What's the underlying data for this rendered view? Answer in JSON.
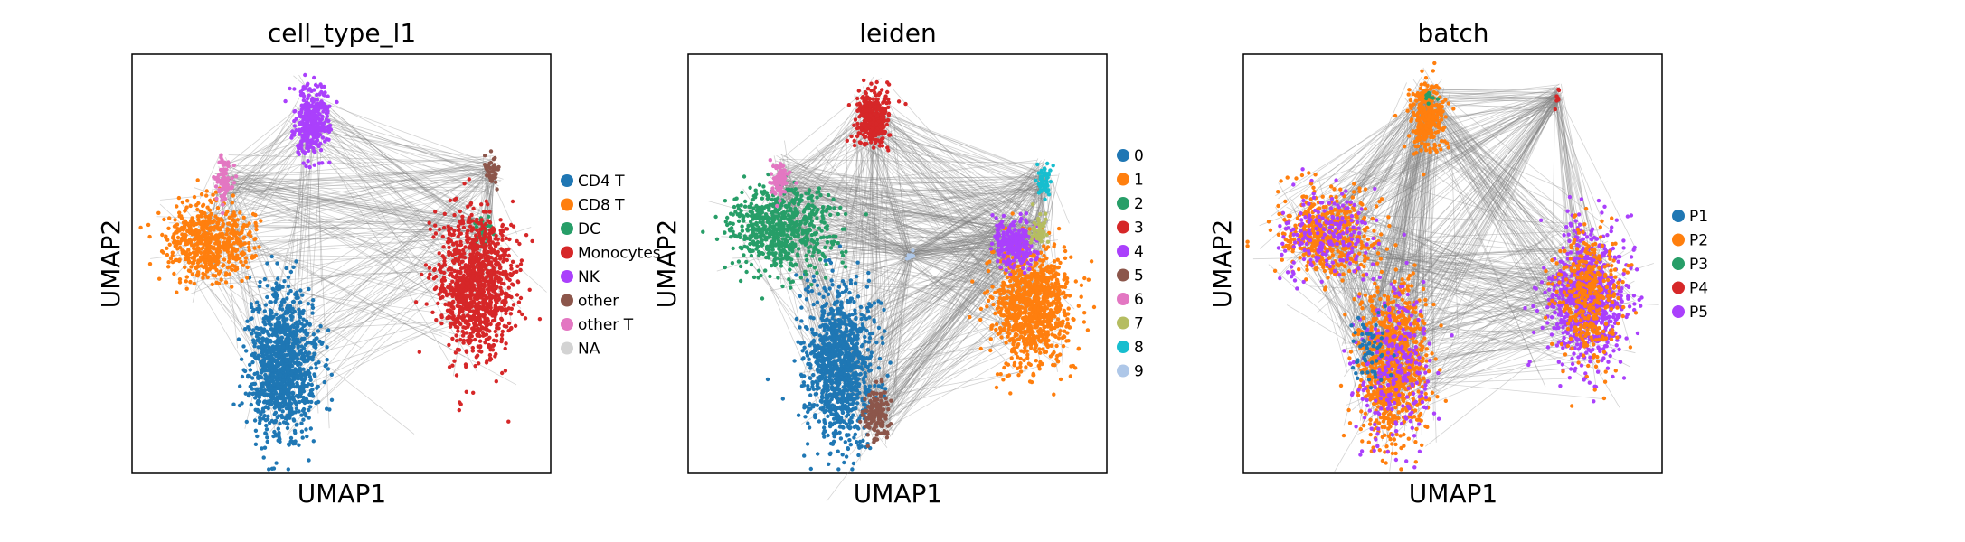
{
  "figure": {
    "background": "#ffffff",
    "edge_color": "#808080",
    "na_color": "#d3d3d3"
  },
  "chart_data": [
    {
      "type": "scatter",
      "title": "cell_type_l1",
      "xlabel": "UMAP1",
      "ylabel": "UMAP2",
      "grid": false,
      "legend_position": "right",
      "categories": [
        {
          "name": "CD4 T",
          "color": "#1f77b4"
        },
        {
          "name": "CD8 T",
          "color": "#ff7f0e"
        },
        {
          "name": "DC",
          "color": "#279e68"
        },
        {
          "name": "Monocytes",
          "color": "#d62728"
        },
        {
          "name": "NK",
          "color": "#aa40fc"
        },
        {
          "name": "other",
          "color": "#8c564b"
        },
        {
          "name": "other T",
          "color": "#e377c2"
        },
        {
          "name": "NA",
          "color": "#d3d3d3"
        }
      ],
      "clusters": [
        {
          "category": "CD4 T",
          "x": 0.36,
          "y": 0.26,
          "rx": 0.08,
          "ry": 0.17,
          "n": 1100
        },
        {
          "category": "CD8 T",
          "x": 0.18,
          "y": 0.55,
          "rx": 0.1,
          "ry": 0.09,
          "n": 600
        },
        {
          "category": "DC",
          "x": 0.84,
          "y": 0.58,
          "rx": 0.02,
          "ry": 0.04,
          "n": 40
        },
        {
          "category": "Monocytes",
          "x": 0.82,
          "y": 0.45,
          "rx": 0.09,
          "ry": 0.17,
          "n": 1100
        },
        {
          "category": "NK",
          "x": 0.43,
          "y": 0.84,
          "rx": 0.04,
          "ry": 0.08,
          "n": 350
        },
        {
          "category": "other",
          "x": 0.86,
          "y": 0.72,
          "rx": 0.02,
          "ry": 0.04,
          "n": 40
        },
        {
          "category": "other T",
          "x": 0.22,
          "y": 0.7,
          "rx": 0.02,
          "ry": 0.05,
          "n": 80
        }
      ]
    },
    {
      "type": "scatter",
      "title": "leiden",
      "xlabel": "UMAP1",
      "ylabel": "UMAP2",
      "grid": false,
      "legend_position": "right",
      "categories": [
        {
          "name": "0",
          "color": "#1f77b4"
        },
        {
          "name": "1",
          "color": "#ff7f0e"
        },
        {
          "name": "2",
          "color": "#279e68"
        },
        {
          "name": "3",
          "color": "#d62728"
        },
        {
          "name": "4",
          "color": "#aa40fc"
        },
        {
          "name": "5",
          "color": "#8c564b"
        },
        {
          "name": "6",
          "color": "#e377c2"
        },
        {
          "name": "7",
          "color": "#b5bd61"
        },
        {
          "name": "8",
          "color": "#17becf"
        },
        {
          "name": "9",
          "color": "#aec7e8"
        }
      ],
      "clusters": [
        {
          "category": "0",
          "x": 0.36,
          "y": 0.26,
          "rx": 0.08,
          "ry": 0.18,
          "n": 1100
        },
        {
          "category": "1",
          "x": 0.82,
          "y": 0.4,
          "rx": 0.09,
          "ry": 0.14,
          "n": 1000
        },
        {
          "category": "2",
          "x": 0.22,
          "y": 0.58,
          "rx": 0.12,
          "ry": 0.1,
          "n": 700
        },
        {
          "category": "3",
          "x": 0.44,
          "y": 0.85,
          "rx": 0.04,
          "ry": 0.07,
          "n": 350
        },
        {
          "category": "4",
          "x": 0.78,
          "y": 0.55,
          "rx": 0.05,
          "ry": 0.06,
          "n": 250
        },
        {
          "category": "5",
          "x": 0.45,
          "y": 0.14,
          "rx": 0.03,
          "ry": 0.06,
          "n": 150
        },
        {
          "category": "6",
          "x": 0.22,
          "y": 0.7,
          "rx": 0.02,
          "ry": 0.05,
          "n": 80
        },
        {
          "category": "7",
          "x": 0.84,
          "y": 0.58,
          "rx": 0.02,
          "ry": 0.04,
          "n": 50
        },
        {
          "category": "8",
          "x": 0.85,
          "y": 0.7,
          "rx": 0.02,
          "ry": 0.04,
          "n": 50
        },
        {
          "category": "9",
          "x": 0.53,
          "y": 0.52,
          "rx": 0.01,
          "ry": 0.01,
          "n": 12
        }
      ]
    },
    {
      "type": "scatter",
      "title": "batch",
      "xlabel": "UMAP1",
      "ylabel": "UMAP2",
      "grid": false,
      "legend_position": "right",
      "categories": [
        {
          "name": "P1",
          "color": "#1f77b4"
        },
        {
          "name": "P2",
          "color": "#ff7f0e"
        },
        {
          "name": "P3",
          "color": "#279e68"
        },
        {
          "name": "P4",
          "color": "#d62728"
        },
        {
          "name": "P5",
          "color": "#aa40fc"
        }
      ],
      "clusters": [
        {
          "category": "P2",
          "x": 0.36,
          "y": 0.26,
          "rx": 0.08,
          "ry": 0.18,
          "n": 900
        },
        {
          "category": "P5",
          "x": 0.36,
          "y": 0.26,
          "rx": 0.09,
          "ry": 0.19,
          "n": 250
        },
        {
          "category": "P2",
          "x": 0.2,
          "y": 0.57,
          "rx": 0.11,
          "ry": 0.1,
          "n": 500
        },
        {
          "category": "P5",
          "x": 0.2,
          "y": 0.57,
          "rx": 0.12,
          "ry": 0.11,
          "n": 200
        },
        {
          "category": "P5",
          "x": 0.82,
          "y": 0.42,
          "rx": 0.09,
          "ry": 0.16,
          "n": 800
        },
        {
          "category": "P2",
          "x": 0.82,
          "y": 0.42,
          "rx": 0.08,
          "ry": 0.15,
          "n": 350
        },
        {
          "category": "P2",
          "x": 0.44,
          "y": 0.85,
          "rx": 0.04,
          "ry": 0.08,
          "n": 300
        },
        {
          "category": "P1",
          "x": 0.3,
          "y": 0.3,
          "rx": 0.05,
          "ry": 0.1,
          "n": 60
        },
        {
          "category": "P4",
          "x": 0.75,
          "y": 0.9,
          "rx": 0.01,
          "ry": 0.02,
          "n": 8
        },
        {
          "category": "P3",
          "x": 0.44,
          "y": 0.9,
          "rx": 0.02,
          "ry": 0.02,
          "n": 10
        }
      ]
    }
  ]
}
